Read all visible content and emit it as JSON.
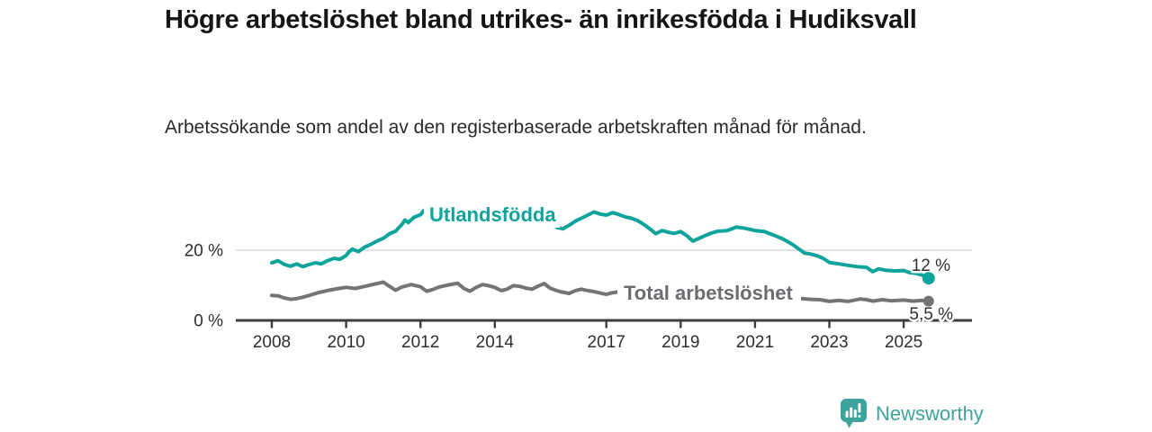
{
  "chart_data": {
    "type": "line",
    "title": "Högre arbetslöshet bland utrikes- än inrikesfödda i Hudiksvall",
    "subtitle": "Arbetssökande som andel av den registerbaserade arbetskraften månad för månad.",
    "xlabel": "",
    "ylabel": "",
    "ylim": [
      0,
      34
    ],
    "xlim": [
      2007.1,
      2026.8
    ],
    "grid": "single horizontal gridline at 20 %",
    "legend": "inline series labels on lines",
    "x_ticks": [
      {
        "year": 2008,
        "label": "2008"
      },
      {
        "year": 2010,
        "label": "2010"
      },
      {
        "year": 2012,
        "label": "2012"
      },
      {
        "year": 2014,
        "label": "2014"
      },
      {
        "year": 2017,
        "label": "2017"
      },
      {
        "year": 2019,
        "label": "2019"
      },
      {
        "year": 2021,
        "label": "2021"
      },
      {
        "year": 2023,
        "label": "2023"
      },
      {
        "year": 2025,
        "label": "2025"
      }
    ],
    "y_ticks": [
      {
        "value": 0,
        "label": "0 %"
      },
      {
        "value": 20,
        "label": "20 %"
      }
    ],
    "series": [
      {
        "id": "utlandsfodda",
        "name": "Utlandsfödda",
        "color": "#0ea49c",
        "end_label": "12 %",
        "end_value": 12,
        "points": [
          [
            2008.0,
            16.4
          ],
          [
            2008.17,
            17.0
          ],
          [
            2008.33,
            16.0
          ],
          [
            2008.5,
            15.4
          ],
          [
            2008.67,
            16.1
          ],
          [
            2008.83,
            15.3
          ],
          [
            2009.0,
            15.9
          ],
          [
            2009.17,
            16.4
          ],
          [
            2009.33,
            16.1
          ],
          [
            2009.5,
            17.0
          ],
          [
            2009.67,
            17.7
          ],
          [
            2009.83,
            17.4
          ],
          [
            2010.0,
            18.5
          ],
          [
            2010.08,
            19.6
          ],
          [
            2010.17,
            20.3
          ],
          [
            2010.33,
            19.6
          ],
          [
            2010.5,
            20.9
          ],
          [
            2010.67,
            21.7
          ],
          [
            2010.83,
            22.6
          ],
          [
            2011.0,
            23.4
          ],
          [
            2011.17,
            24.7
          ],
          [
            2011.33,
            25.4
          ],
          [
            2011.5,
            27.3
          ],
          [
            2011.58,
            28.6
          ],
          [
            2011.67,
            27.9
          ],
          [
            2011.83,
            29.4
          ],
          [
            2012.0,
            30.1
          ],
          [
            2012.08,
            31.2
          ],
          [
            2012.17,
            30.5
          ],
          [
            2012.25,
            31.9
          ],
          [
            2012.33,
            30.9
          ],
          [
            2012.5,
            32.0
          ],
          [
            2012.67,
            31.5
          ],
          [
            2012.83,
            31.9
          ],
          [
            2013.0,
            32.2
          ],
          [
            2013.17,
            31.7
          ],
          [
            2013.33,
            31.2
          ],
          [
            2013.5,
            30.9
          ],
          [
            2013.67,
            30.5
          ],
          [
            2013.83,
            30.2
          ],
          [
            2014.0,
            30.0
          ],
          [
            2014.25,
            29.6
          ],
          [
            2014.5,
            29.2
          ],
          [
            2014.75,
            28.8
          ],
          [
            2015.0,
            28.3
          ],
          [
            2015.25,
            27.9
          ],
          [
            2015.42,
            27.8
          ],
          [
            2015.5,
            28.2
          ],
          [
            2015.67,
            26.5
          ],
          [
            2015.83,
            26.1
          ],
          [
            2016.0,
            27.1
          ],
          [
            2016.17,
            28.3
          ],
          [
            2016.33,
            29.1
          ],
          [
            2016.5,
            30.0
          ],
          [
            2016.67,
            30.9
          ],
          [
            2016.83,
            30.3
          ],
          [
            2017.0,
            30.0
          ],
          [
            2017.17,
            30.7
          ],
          [
            2017.33,
            30.2
          ],
          [
            2017.5,
            29.5
          ],
          [
            2017.67,
            29.1
          ],
          [
            2017.83,
            28.5
          ],
          [
            2018.0,
            27.4
          ],
          [
            2018.17,
            26.1
          ],
          [
            2018.33,
            24.7
          ],
          [
            2018.5,
            25.6
          ],
          [
            2018.67,
            25.1
          ],
          [
            2018.83,
            24.8
          ],
          [
            2019.0,
            25.3
          ],
          [
            2019.17,
            24.1
          ],
          [
            2019.33,
            22.6
          ],
          [
            2019.5,
            23.4
          ],
          [
            2019.67,
            24.2
          ],
          [
            2019.83,
            24.9
          ],
          [
            2020.0,
            25.4
          ],
          [
            2020.25,
            25.6
          ],
          [
            2020.5,
            26.6
          ],
          [
            2020.75,
            26.2
          ],
          [
            2021.0,
            25.6
          ],
          [
            2021.25,
            25.3
          ],
          [
            2021.5,
            24.3
          ],
          [
            2021.75,
            23.2
          ],
          [
            2022.0,
            21.7
          ],
          [
            2022.17,
            20.4
          ],
          [
            2022.33,
            19.2
          ],
          [
            2022.5,
            18.9
          ],
          [
            2022.67,
            18.4
          ],
          [
            2022.83,
            17.7
          ],
          [
            2023.0,
            16.5
          ],
          [
            2023.25,
            16.1
          ],
          [
            2023.5,
            15.7
          ],
          [
            2023.75,
            15.3
          ],
          [
            2024.0,
            15.1
          ],
          [
            2024.17,
            13.9
          ],
          [
            2024.33,
            14.7
          ],
          [
            2024.5,
            14.3
          ],
          [
            2024.75,
            14.1
          ],
          [
            2025.0,
            14.2
          ],
          [
            2025.17,
            13.6
          ],
          [
            2025.33,
            13.4
          ],
          [
            2025.5,
            12.9
          ],
          [
            2025.67,
            12.0
          ]
        ]
      },
      {
        "id": "total-arbetsloshet",
        "name": "Total arbetslöshet",
        "color": "#747474",
        "label_color": "#6c6c70",
        "end_label": "5,5 %",
        "end_value": 5.5,
        "points": [
          [
            2008.0,
            7.1
          ],
          [
            2008.17,
            7.0
          ],
          [
            2008.33,
            6.4
          ],
          [
            2008.5,
            6.0
          ],
          [
            2008.67,
            6.2
          ],
          [
            2008.83,
            6.6
          ],
          [
            2009.0,
            7.1
          ],
          [
            2009.25,
            7.9
          ],
          [
            2009.5,
            8.5
          ],
          [
            2009.75,
            9.0
          ],
          [
            2010.0,
            9.4
          ],
          [
            2010.25,
            9.1
          ],
          [
            2010.5,
            9.7
          ],
          [
            2010.75,
            10.3
          ],
          [
            2011.0,
            10.9
          ],
          [
            2011.17,
            9.7
          ],
          [
            2011.33,
            8.6
          ],
          [
            2011.5,
            9.5
          ],
          [
            2011.75,
            10.2
          ],
          [
            2012.0,
            9.6
          ],
          [
            2012.17,
            8.3
          ],
          [
            2012.33,
            8.8
          ],
          [
            2012.5,
            9.5
          ],
          [
            2012.75,
            10.1
          ],
          [
            2013.0,
            10.6
          ],
          [
            2013.17,
            9.1
          ],
          [
            2013.33,
            8.3
          ],
          [
            2013.5,
            9.4
          ],
          [
            2013.67,
            10.2
          ],
          [
            2013.83,
            9.9
          ],
          [
            2014.0,
            9.4
          ],
          [
            2014.17,
            8.5
          ],
          [
            2014.33,
            8.9
          ],
          [
            2014.5,
            9.9
          ],
          [
            2014.67,
            9.7
          ],
          [
            2014.83,
            9.2
          ],
          [
            2015.0,
            8.9
          ],
          [
            2015.17,
            9.8
          ],
          [
            2015.33,
            10.5
          ],
          [
            2015.5,
            9.1
          ],
          [
            2015.75,
            8.2
          ],
          [
            2016.0,
            7.7
          ],
          [
            2016.17,
            8.5
          ],
          [
            2016.33,
            8.9
          ],
          [
            2016.5,
            8.5
          ],
          [
            2016.67,
            8.2
          ],
          [
            2016.83,
            7.8
          ],
          [
            2017.0,
            7.4
          ],
          [
            2017.17,
            7.9
          ],
          [
            2017.33,
            8.1
          ],
          [
            2017.5,
            7.7
          ],
          [
            2017.75,
            7.3
          ],
          [
            2018.0,
            7.0
          ],
          [
            2018.5,
            6.8
          ],
          [
            2019.0,
            6.5
          ],
          [
            2019.5,
            6.3
          ],
          [
            2020.0,
            6.6
          ],
          [
            2020.42,
            7.6
          ],
          [
            2020.75,
            7.3
          ],
          [
            2021.0,
            7.1
          ],
          [
            2021.5,
            6.7
          ],
          [
            2022.0,
            6.4
          ],
          [
            2022.25,
            6.2
          ],
          [
            2022.5,
            6.0
          ],
          [
            2022.75,
            5.9
          ],
          [
            2023.0,
            5.4
          ],
          [
            2023.25,
            5.7
          ],
          [
            2023.5,
            5.4
          ],
          [
            2023.83,
            6.1
          ],
          [
            2024.0,
            5.9
          ],
          [
            2024.17,
            5.5
          ],
          [
            2024.42,
            5.9
          ],
          [
            2024.67,
            5.6
          ],
          [
            2025.0,
            5.8
          ],
          [
            2025.25,
            5.5
          ],
          [
            2025.5,
            5.7
          ],
          [
            2025.67,
            5.5
          ]
        ]
      }
    ]
  },
  "footer": {
    "brand": "Newsworthy"
  },
  "colors": {
    "accent_teal": "#0ea49c",
    "series_gray": "#747474",
    "axis": "#3e3e3e",
    "tick_text": "#2e2e2e",
    "grid": "#d9d9d9",
    "brand_teal": "#3da49c"
  }
}
